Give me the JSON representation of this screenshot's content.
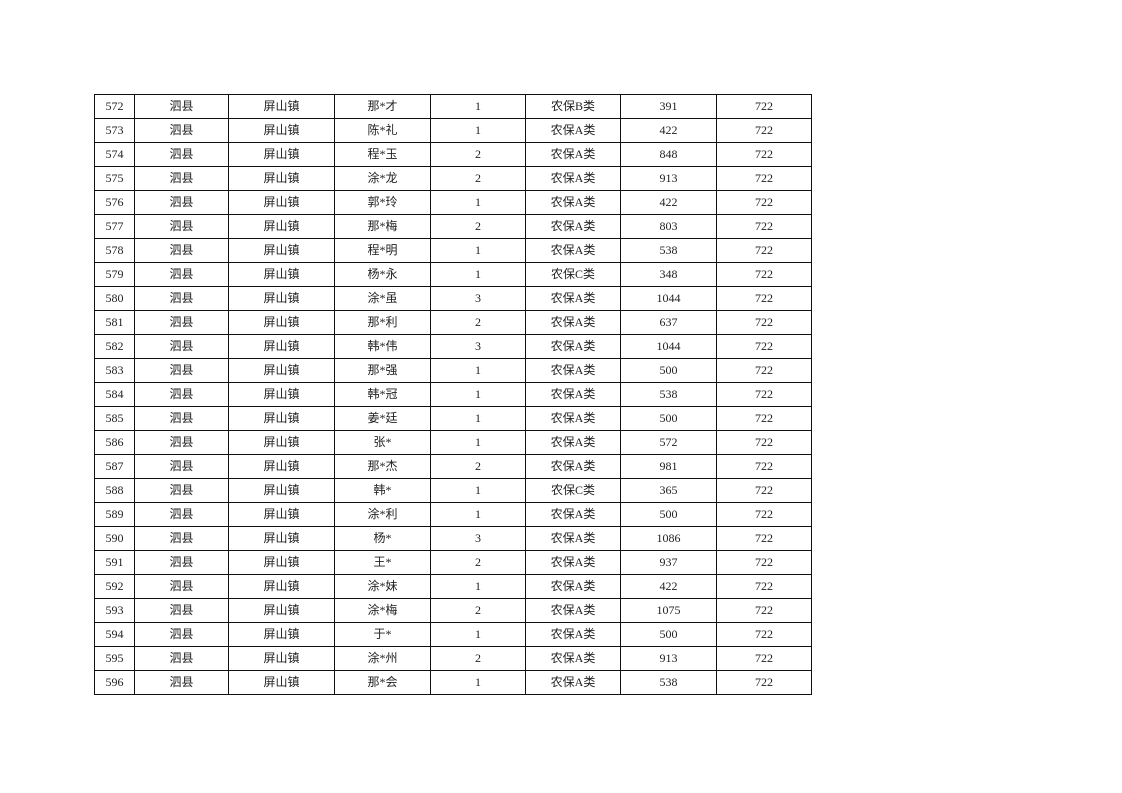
{
  "table": {
    "rows": [
      [
        "572",
        "泗县",
        "屏山镇",
        "那*才",
        "1",
        "农保B类",
        "391",
        "722"
      ],
      [
        "573",
        "泗县",
        "屏山镇",
        "陈*礼",
        "1",
        "农保A类",
        "422",
        "722"
      ],
      [
        "574",
        "泗县",
        "屏山镇",
        "程*玉",
        "2",
        "农保A类",
        "848",
        "722"
      ],
      [
        "575",
        "泗县",
        "屏山镇",
        "涂*龙",
        "2",
        "农保A类",
        "913",
        "722"
      ],
      [
        "576",
        "泗县",
        "屏山镇",
        "郭*玲",
        "1",
        "农保A类",
        "422",
        "722"
      ],
      [
        "577",
        "泗县",
        "屏山镇",
        "那*梅",
        "2",
        "农保A类",
        "803",
        "722"
      ],
      [
        "578",
        "泗县",
        "屏山镇",
        "程*明",
        "1",
        "农保A类",
        "538",
        "722"
      ],
      [
        "579",
        "泗县",
        "屏山镇",
        "杨*永",
        "1",
        "农保C类",
        "348",
        "722"
      ],
      [
        "580",
        "泗县",
        "屏山镇",
        "涂*虽",
        "3",
        "农保A类",
        "1044",
        "722"
      ],
      [
        "581",
        "泗县",
        "屏山镇",
        "那*利",
        "2",
        "农保A类",
        "637",
        "722"
      ],
      [
        "582",
        "泗县",
        "屏山镇",
        "韩*伟",
        "3",
        "农保A类",
        "1044",
        "722"
      ],
      [
        "583",
        "泗县",
        "屏山镇",
        "那*强",
        "1",
        "农保A类",
        "500",
        "722"
      ],
      [
        "584",
        "泗县",
        "屏山镇",
        "韩*冠",
        "1",
        "农保A类",
        "538",
        "722"
      ],
      [
        "585",
        "泗县",
        "屏山镇",
        "姜*廷",
        "1",
        "农保A类",
        "500",
        "722"
      ],
      [
        "586",
        "泗县",
        "屏山镇",
        "张*",
        "1",
        "农保A类",
        "572",
        "722"
      ],
      [
        "587",
        "泗县",
        "屏山镇",
        "那*杰",
        "2",
        "农保A类",
        "981",
        "722"
      ],
      [
        "588",
        "泗县",
        "屏山镇",
        "韩*",
        "1",
        "农保C类",
        "365",
        "722"
      ],
      [
        "589",
        "泗县",
        "屏山镇",
        "涂*利",
        "1",
        "农保A类",
        "500",
        "722"
      ],
      [
        "590",
        "泗县",
        "屏山镇",
        "杨*",
        "3",
        "农保A类",
        "1086",
        "722"
      ],
      [
        "591",
        "泗县",
        "屏山镇",
        "王*",
        "2",
        "农保A类",
        "937",
        "722"
      ],
      [
        "592",
        "泗县",
        "屏山镇",
        "涂*妹",
        "1",
        "农保A类",
        "422",
        "722"
      ],
      [
        "593",
        "泗县",
        "屏山镇",
        "涂*梅",
        "2",
        "农保A类",
        "1075",
        "722"
      ],
      [
        "594",
        "泗县",
        "屏山镇",
        "于*",
        "1",
        "农保A类",
        "500",
        "722"
      ],
      [
        "595",
        "泗县",
        "屏山镇",
        "涂*州",
        "2",
        "农保A类",
        "913",
        "722"
      ],
      [
        "596",
        "泗县",
        "屏山镇",
        "那*会",
        "1",
        "农保A类",
        "538",
        "722"
      ]
    ]
  }
}
